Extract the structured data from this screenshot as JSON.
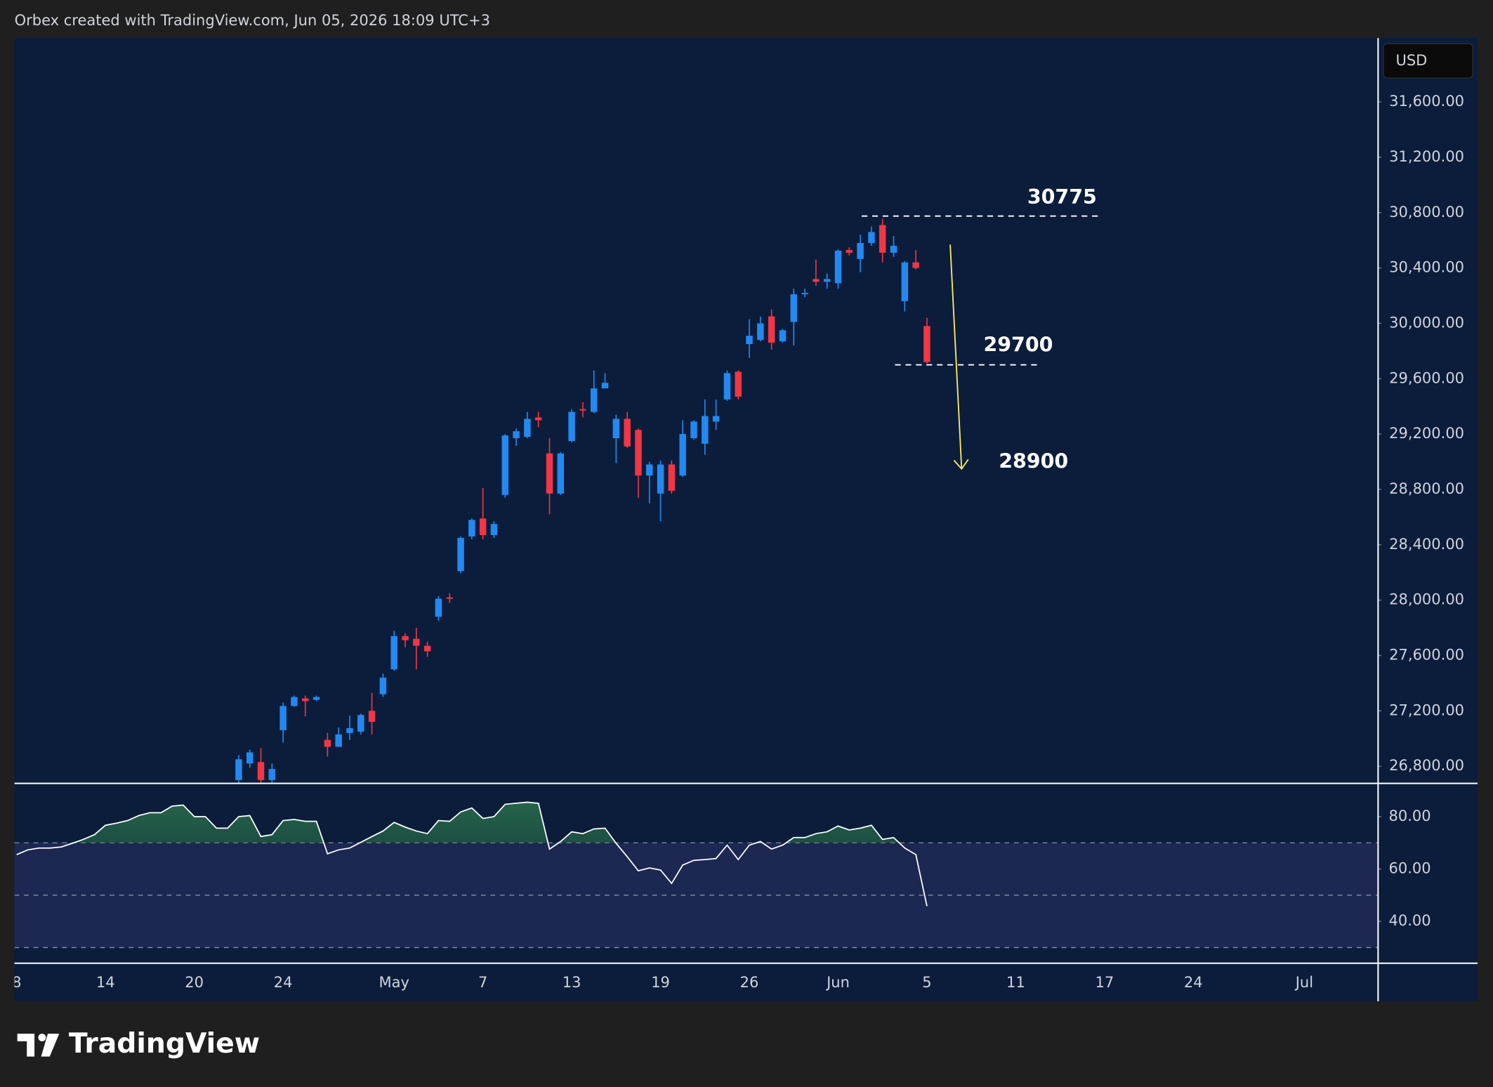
{
  "header": "Orbex created with TradingView.com, Jun 05, 2026 18:09 UTC+3",
  "currency": "USD",
  "brand": "TradingView",
  "chart_data": [
    {
      "type": "candlestick",
      "up_color": "#2389f0",
      "down_color": "#f23645",
      "xlim": [
        -0.2,
        122.6
      ],
      "ylim": [
        26676,
        32061
      ],
      "yticks": [
        {
          "value": 31600,
          "label": "31,600.00"
        },
        {
          "value": 31200,
          "label": "31,200.00"
        },
        {
          "value": 30800,
          "label": "30,800.00"
        },
        {
          "value": 30400,
          "label": "30,400.00"
        },
        {
          "value": 30000,
          "label": "30,000.00"
        },
        {
          "value": 29600,
          "label": "29,600.00"
        },
        {
          "value": 29200,
          "label": "29,200.00"
        },
        {
          "value": 28800,
          "label": "28,800.00"
        },
        {
          "value": 28400,
          "label": "28,400.00"
        },
        {
          "value": 28000,
          "label": "28,000.00"
        },
        {
          "value": 27600,
          "label": "27,600.00"
        },
        {
          "value": 27200,
          "label": "27,200.00"
        },
        {
          "value": 26800,
          "label": "26,800.00"
        }
      ],
      "levels": [
        30775,
        29700
      ],
      "target": 28900,
      "x": [
        20,
        21,
        22,
        23,
        24,
        25,
        26,
        27,
        28,
        29,
        30,
        31,
        32,
        33,
        34,
        35,
        36,
        37,
        38,
        39,
        40,
        41,
        42,
        43,
        44,
        45,
        46,
        47,
        48,
        49,
        50,
        51,
        52,
        53,
        54,
        55,
        56,
        57,
        58,
        59,
        60,
        61,
        62,
        63,
        64,
        65,
        66,
        67,
        68,
        69,
        70,
        71,
        72,
        73,
        74,
        75,
        76,
        77,
        78,
        79,
        80,
        81,
        82
      ],
      "open": [
        26700,
        26820,
        26830,
        26700,
        27060,
        27235,
        27290,
        27280,
        26990,
        26940,
        27040,
        27050,
        27200,
        27320,
        27500,
        27740,
        27720,
        27670,
        27880,
        28020,
        28210,
        28460,
        28590,
        28470,
        28760,
        29170,
        29180,
        29320,
        29060,
        28770,
        29150,
        29380,
        29360,
        29530,
        29170,
        29310,
        29230,
        28900,
        28770,
        28980,
        28900,
        29170,
        29130,
        29290,
        29450,
        29650,
        29850,
        29880,
        30050,
        29870,
        30010,
        30210,
        30320,
        30300,
        30290,
        30530,
        30465,
        30580,
        30710,
        30510,
        30160,
        30440,
        29980
      ],
      "high": [
        26880,
        26920,
        26930,
        26820,
        27260,
        27310,
        27310,
        27310,
        27040,
        27080,
        27165,
        27180,
        27330,
        27470,
        27780,
        27760,
        27800,
        27700,
        28030,
        28050,
        28460,
        28590,
        28810,
        28570,
        29200,
        29240,
        29360,
        29360,
        29170,
        29070,
        29380,
        29430,
        29660,
        29640,
        29340,
        29360,
        29240,
        29000,
        29010,
        29010,
        29300,
        29300,
        29450,
        29450,
        29660,
        29660,
        30030,
        30050,
        30100,
        29960,
        30250,
        30250,
        30460,
        30360,
        30535,
        30550,
        30640,
        30700,
        30755,
        30630,
        30450,
        30530,
        30040
      ],
      "low": [
        26650,
        26790,
        26650,
        26650,
        26970,
        27230,
        27160,
        27270,
        26870,
        26940,
        26990,
        27030,
        27030,
        27300,
        27490,
        27660,
        27500,
        27590,
        27850,
        27980,
        28195,
        28440,
        28440,
        28450,
        28740,
        29115,
        29170,
        29250,
        28620,
        28760,
        29140,
        29320,
        29350,
        29530,
        28990,
        29100,
        28740,
        28700,
        28570,
        28770,
        28890,
        29160,
        29050,
        29230,
        29440,
        29450,
        29750,
        29870,
        29810,
        29860,
        29840,
        30190,
        30270,
        30250,
        30250,
        30490,
        30370,
        30560,
        30440,
        30480,
        30085,
        30390,
        29710
      ],
      "close": [
        26850,
        26900,
        26700,
        26780,
        27235,
        27300,
        27270,
        27300,
        26940,
        27030,
        27075,
        27170,
        27120,
        27440,
        27740,
        27710,
        27670,
        27630,
        28010,
        28010,
        28450,
        28580,
        28470,
        28550,
        29190,
        29220,
        29310,
        29300,
        28770,
        29060,
        29360,
        29370,
        29530,
        29570,
        29310,
        29110,
        28900,
        28980,
        28980,
        28790,
        29200,
        29290,
        29330,
        29330,
        29640,
        29470,
        29910,
        30000,
        29860,
        29950,
        30210,
        30220,
        30300,
        30320,
        30525,
        30510,
        30580,
        30660,
        30510,
        30560,
        30440,
        30400,
        29720
      ]
    },
    {
      "type": "line",
      "color": "#ffffff",
      "xlim": [
        -0.2,
        122.6
      ],
      "ylim": [
        24,
        92.7
      ],
      "yticks": [
        {
          "value": 80,
          "label": "80.00"
        },
        {
          "value": 60,
          "label": "60.00"
        },
        {
          "value": 40,
          "label": "40.00"
        }
      ],
      "hlines": [
        70,
        50,
        30
      ],
      "xticks": [
        {
          "value": 0,
          "label": "8"
        },
        {
          "value": 8,
          "label": "14"
        },
        {
          "value": 16,
          "label": "20"
        },
        {
          "value": 24,
          "label": "24"
        },
        {
          "value": 34,
          "label": "May"
        },
        {
          "value": 42,
          "label": "7"
        },
        {
          "value": 50,
          "label": "13"
        },
        {
          "value": 58,
          "label": "19"
        },
        {
          "value": 66,
          "label": "26"
        },
        {
          "value": 74,
          "label": "Jun"
        },
        {
          "value": 82,
          "label": "5"
        },
        {
          "value": 90,
          "label": "11"
        },
        {
          "value": 98,
          "label": "17"
        },
        {
          "value": 106,
          "label": "24"
        },
        {
          "value": 116,
          "label": "Jul"
        }
      ],
      "x": [
        0,
        1,
        2,
        3,
        4,
        5,
        6,
        7,
        8,
        9,
        10,
        11,
        12,
        13,
        14,
        15,
        16,
        17,
        18,
        19,
        20,
        21,
        22,
        23,
        24,
        25,
        26,
        27,
        28,
        29,
        30,
        31,
        32,
        33,
        34,
        35,
        36,
        37,
        38,
        39,
        40,
        41,
        42,
        43,
        44,
        45,
        46,
        47,
        48,
        49,
        50,
        51,
        52,
        53,
        54,
        55,
        56,
        57,
        58,
        59,
        60,
        61,
        62,
        63,
        64,
        65,
        66,
        67,
        68,
        69,
        70,
        71,
        72,
        73,
        74,
        75,
        76,
        77,
        78,
        79,
        80,
        81,
        82
      ],
      "values": [
        65.5,
        67.3,
        68,
        68,
        68.4,
        69.8,
        71.3,
        73.1,
        76.7,
        77.5,
        78.5,
        80.4,
        81.5,
        81.5,
        84,
        84.4,
        80,
        80,
        75.6,
        75.6,
        80,
        80.4,
        72.4,
        73.1,
        78.5,
        78.9,
        78.2,
        78.2,
        65.8,
        67.3,
        68,
        70.2,
        72.4,
        74.5,
        77.8,
        76,
        74.5,
        73.5,
        78.5,
        78.2,
        81.8,
        83.3,
        79.3,
        80,
        84.7,
        85.1,
        85.5,
        85.1,
        67.6,
        70.5,
        74.2,
        73.5,
        75.3,
        75.6,
        69.8,
        64.7,
        59.3,
        60.4,
        59.6,
        54.5,
        61.5,
        63.3,
        63.6,
        64,
        69.1,
        63.6,
        69.1,
        70.5,
        67.6,
        69.1,
        72,
        72,
        73.5,
        74.2,
        76.4,
        74.9,
        75.6,
        76.7,
        71.3,
        72,
        68,
        65.5,
        45.8
      ]
    }
  ]
}
